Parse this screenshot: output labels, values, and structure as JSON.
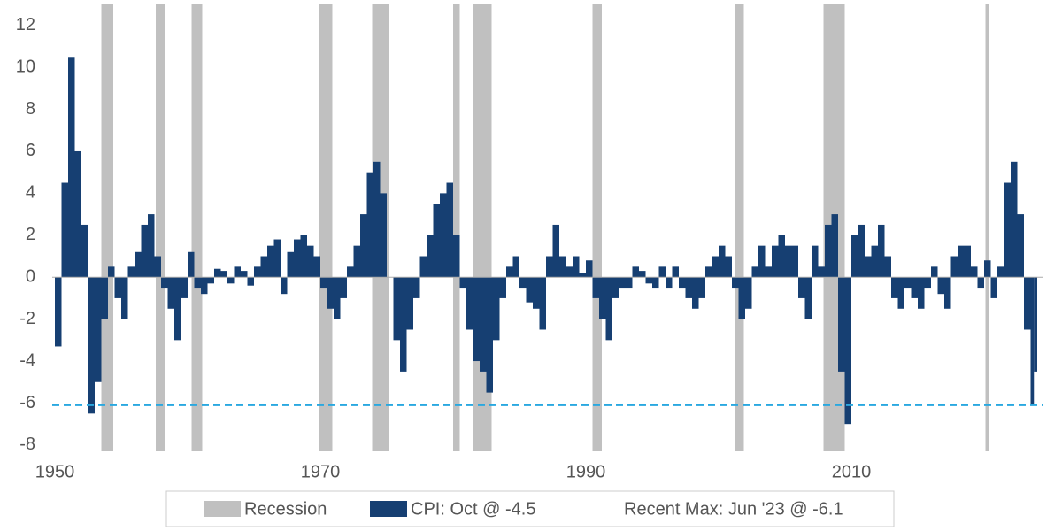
{
  "chart_data": {
    "type": "bar",
    "xlim": [
      1949.8,
      2024.4
    ],
    "xticks": [
      1950,
      1970,
      1990,
      2010
    ],
    "ylim": [
      -8.3,
      13
    ],
    "yticks": [
      -8,
      -6,
      -4,
      -2,
      0,
      2,
      4,
      6,
      8,
      10,
      12
    ],
    "recessions": {
      "name": "Recession",
      "color": "#c0c0c0",
      "periods": [
        [
          1953.5,
          1954.4
        ],
        [
          1957.6,
          1958.3
        ],
        [
          1960.3,
          1961.1
        ],
        [
          1969.9,
          1970.9
        ],
        [
          1973.9,
          1975.2
        ],
        [
          1980.0,
          1980.5
        ],
        [
          1981.5,
          1982.9
        ],
        [
          1990.5,
          1991.2
        ],
        [
          2001.2,
          2001.9
        ],
        [
          2007.9,
          2009.5
        ],
        [
          2020.1,
          2020.4
        ]
      ]
    },
    "reference_line": {
      "name": "Recent Max: Jun '23 @ -6.1",
      "value": -6.1,
      "color": "#29a8e0"
    },
    "series": [
      {
        "name": "CPI: Oct @ -4.5",
        "color": "#163f72",
        "x": [
          1950,
          1950.5,
          1951,
          1951.5,
          1952,
          1952.5,
          1953,
          1953.5,
          1954,
          1954.5,
          1955,
          1955.5,
          1956,
          1956.5,
          1957,
          1957.5,
          1958,
          1958.5,
          1959,
          1959.5,
          1960,
          1960.5,
          1961,
          1961.5,
          1962,
          1962.5,
          1963,
          1963.5,
          1964,
          1964.5,
          1965,
          1965.5,
          1966,
          1966.5,
          1967,
          1967.5,
          1968,
          1968.5,
          1969,
          1969.5,
          1970,
          1970.5,
          1971,
          1971.5,
          1972,
          1972.5,
          1973,
          1973.5,
          1974,
          1974.5,
          1975,
          1975.5,
          1976,
          1976.5,
          1977,
          1977.5,
          1978,
          1978.5,
          1979,
          1979.5,
          1980,
          1980.5,
          1981,
          1981.5,
          1982,
          1982.5,
          1983,
          1983.5,
          1984,
          1984.5,
          1985,
          1985.5,
          1986,
          1986.5,
          1987,
          1987.5,
          1988,
          1988.5,
          1989,
          1989.5,
          1990,
          1990.5,
          1991,
          1991.5,
          1992,
          1992.5,
          1993,
          1993.5,
          1994,
          1994.5,
          1995,
          1995.5,
          1996,
          1996.5,
          1997,
          1997.5,
          1998,
          1998.5,
          1999,
          1999.5,
          2000,
          2000.5,
          2001,
          2001.5,
          2002,
          2002.5,
          2003,
          2003.5,
          2004,
          2004.5,
          2005,
          2005.5,
          2006,
          2006.5,
          2007,
          2007.5,
          2008,
          2008.5,
          2009,
          2009.5,
          2010,
          2010.5,
          2011,
          2011.5,
          2012,
          2012.5,
          2013,
          2013.5,
          2014,
          2014.5,
          2015,
          2015.5,
          2016,
          2016.5,
          2017,
          2017.5,
          2018,
          2018.5,
          2019,
          2019.5,
          2020,
          2020.5,
          2021,
          2021.5,
          2022,
          2022.5,
          2023,
          2023.5,
          2023.75
        ],
        "values": [
          -3.3,
          4.5,
          10.5,
          6,
          2.5,
          -6.5,
          -5,
          -2,
          0.5,
          -1,
          -2,
          0.5,
          1.2,
          2.5,
          3,
          1,
          -0.5,
          -1.5,
          -3,
          -1,
          1.2,
          -0.5,
          -0.8,
          -0.3,
          0.4,
          0.3,
          -0.3,
          0.5,
          0.3,
          -0.4,
          0.5,
          1,
          1.5,
          1.8,
          -0.8,
          1.2,
          1.8,
          2,
          1.5,
          1,
          -0.5,
          -1.5,
          -2,
          -1,
          0.5,
          1.5,
          3,
          5,
          5.5,
          4,
          0,
          -3,
          -4.5,
          -2.5,
          -1,
          1,
          2,
          3.5,
          4,
          4.5,
          2,
          -0.5,
          -2.5,
          -4,
          -4.5,
          -5.5,
          -3,
          -1,
          0.5,
          1,
          -0.5,
          -1.2,
          -1.5,
          -2.5,
          1,
          2.5,
          1,
          0.5,
          1,
          0.2,
          0.8,
          -1,
          -2,
          -3,
          -1,
          -0.5,
          -0.5,
          0.5,
          0.3,
          -0.3,
          -0.5,
          0.5,
          -0.5,
          0.5,
          -0.5,
          -1,
          -1.5,
          -1,
          0.5,
          1,
          1.5,
          1,
          -0.5,
          -2,
          -1.5,
          0.5,
          1.5,
          0.5,
          1.5,
          2,
          1.5,
          1.5,
          -1,
          -2,
          1.5,
          0.5,
          2.5,
          3,
          -4.5,
          -7,
          2,
          2.5,
          1,
          1.5,
          2.5,
          1,
          -1,
          -1.5,
          -0.5,
          -1,
          -1.5,
          -0.5,
          0.5,
          -0.8,
          -1.5,
          1,
          1.5,
          1.5,
          0.5,
          -0.5,
          0.8,
          -1,
          0.5,
          4.5,
          5.5,
          3,
          -2.5,
          -6.1,
          -4.5
        ]
      }
    ]
  }
}
